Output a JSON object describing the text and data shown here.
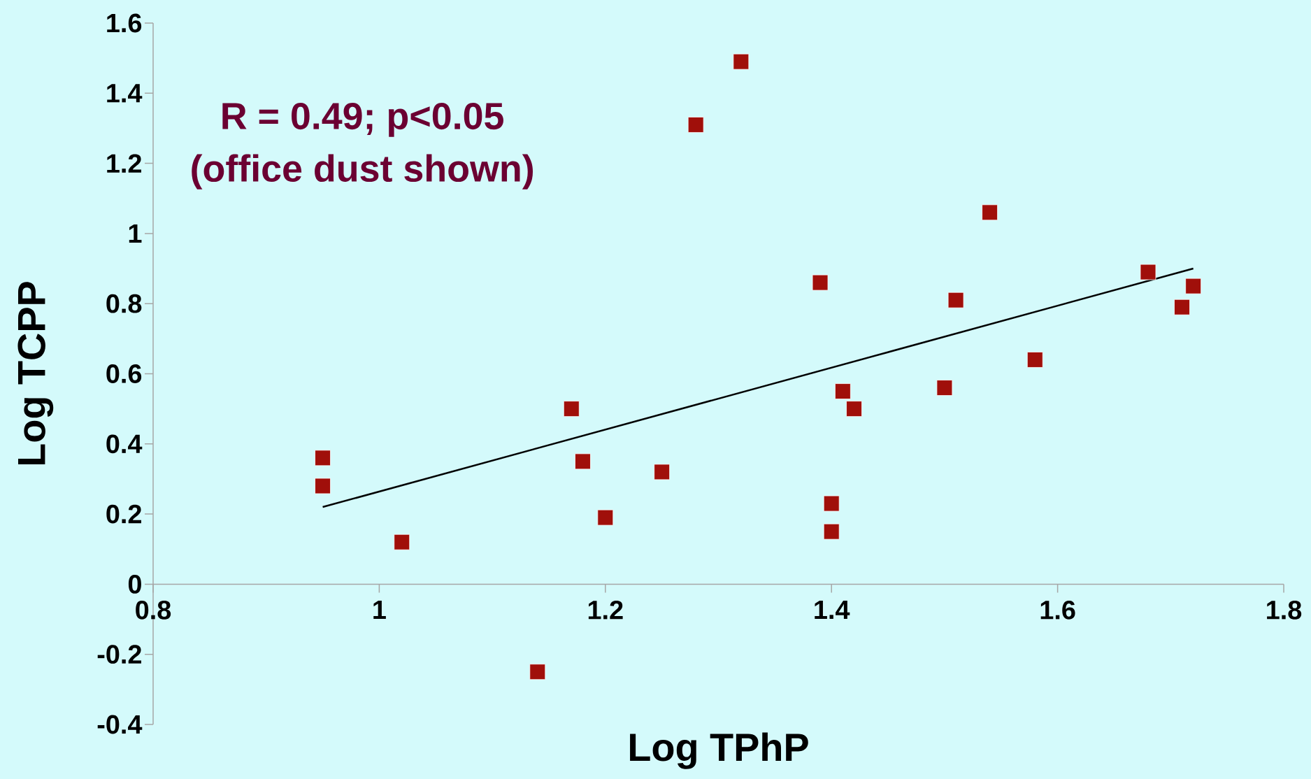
{
  "chart_data": {
    "type": "scatter",
    "xlabel": "Log TPhP",
    "ylabel": "Log TCPP",
    "annotations": [
      "R = 0.49; p<0.05",
      "(office dust shown)"
    ],
    "xlim": [
      0.8,
      1.8
    ],
    "ylim": [
      -0.4,
      1.6
    ],
    "xticks": [
      0.8,
      1,
      1.2,
      1.4,
      1.6,
      1.8
    ],
    "yticks": [
      -0.4,
      -0.2,
      0,
      0.2,
      0.4,
      0.6,
      0.8,
      1,
      1.2,
      1.4,
      1.6
    ],
    "marker": "square",
    "grid": false,
    "series": [
      {
        "color": "#a00f0a",
        "x": [
          0.95,
          0.95,
          1.02,
          1.14,
          1.17,
          1.18,
          1.2,
          1.25,
          1.28,
          1.32,
          1.39,
          1.4,
          1.4,
          1.41,
          1.42,
          1.5,
          1.51,
          1.54,
          1.58,
          1.68,
          1.72,
          1.71
        ],
        "values": [
          0.36,
          0.28,
          0.12,
          -0.25,
          0.5,
          0.35,
          0.19,
          0.32,
          1.31,
          1.49,
          0.86,
          0.15,
          0.23,
          0.55,
          0.5,
          0.56,
          0.81,
          1.06,
          0.64,
          0.89,
          0.85,
          0.79
        ]
      },
      {
        "type": "line",
        "color": "#000000",
        "marker": "none",
        "x": [
          0.95,
          1.72
        ],
        "values": [
          0.22,
          0.9
        ]
      }
    ]
  }
}
